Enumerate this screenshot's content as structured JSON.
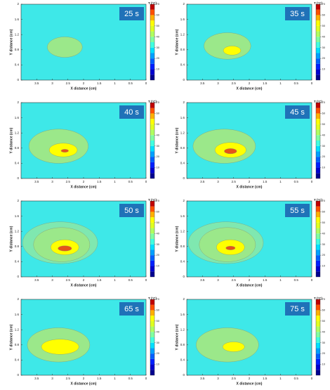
{
  "shared": {
    "xlabel": "X distance (cm)",
    "ylabel": "Y distance (cm)",
    "colorbar_label": "T (°C)",
    "xlim": [
      4,
      0
    ],
    "ylim": [
      0,
      2
    ],
    "xticks": [
      3.5,
      3,
      2.5,
      2,
      1.5,
      1,
      0.5,
      0
    ],
    "yticks": [
      0,
      0.4,
      0.8,
      1.2,
      1.6,
      2
    ],
    "clim": [
      0,
      70
    ],
    "cticks": [
      10,
      20,
      30,
      40,
      50,
      60,
      70
    ],
    "colorbar_colors": [
      "#00008f",
      "#0000d0",
      "#0020ff",
      "#0060ff",
      "#00a0ff",
      "#00e0ff",
      "#40ffe0",
      "#80ffa0",
      "#b0ff60",
      "#e0ff20",
      "#ffff00",
      "#ffb000",
      "#ff5000",
      "#c00000"
    ]
  },
  "chart_data": [
    {
      "type": "contour",
      "title": "25 s",
      "background": "#3ee8e8",
      "regions": [
        {
          "color": "#9be88a",
          "x": 2.6,
          "y": 0.87,
          "rx": 0.56,
          "ry": 0.27
        }
      ]
    },
    {
      "type": "contour",
      "title": "35 s",
      "background": "#3ee8e8",
      "regions": [
        {
          "color": "#9be88a",
          "x": 2.7,
          "y": 0.9,
          "rx": 0.75,
          "ry": 0.35
        },
        {
          "color": "#ffff00",
          "x": 2.55,
          "y": 0.78,
          "rx": 0.28,
          "ry": 0.12
        }
      ]
    },
    {
      "type": "contour",
      "title": "40 s",
      "background": "#3ee8e8",
      "regions": [
        {
          "color": "#9be88a",
          "x": 2.8,
          "y": 0.85,
          "rx": 0.95,
          "ry": 0.45
        },
        {
          "color": "#ffff00",
          "x": 2.65,
          "y": 0.75,
          "rx": 0.45,
          "ry": 0.18
        },
        {
          "color": "#e5541a",
          "x": 2.6,
          "y": 0.73,
          "rx": 0.12,
          "ry": 0.04
        }
      ]
    },
    {
      "type": "contour",
      "title": "45 s",
      "background": "#3ee8e8",
      "regions": [
        {
          "color": "#9be88a",
          "x": 2.8,
          "y": 0.85,
          "rx": 1.0,
          "ry": 0.45
        },
        {
          "color": "#ffff00",
          "x": 2.6,
          "y": 0.75,
          "rx": 0.5,
          "ry": 0.2
        },
        {
          "color": "#e5541a",
          "x": 2.6,
          "y": 0.72,
          "rx": 0.2,
          "ry": 0.07
        }
      ]
    },
    {
      "type": "contour",
      "title": "50 s",
      "background": "#3ee8e8",
      "regions": [
        {
          "color": "#7fe8b0",
          "x": 2.75,
          "y": 0.9,
          "rx": 1.2,
          "ry": 0.55
        },
        {
          "color": "#9be88a",
          "x": 2.7,
          "y": 0.85,
          "rx": 0.9,
          "ry": 0.45
        },
        {
          "color": "#ffff00",
          "x": 2.6,
          "y": 0.78,
          "rx": 0.45,
          "ry": 0.2
        },
        {
          "color": "#e5541a",
          "x": 2.6,
          "y": 0.75,
          "rx": 0.22,
          "ry": 0.07
        }
      ]
    },
    {
      "type": "contour",
      "title": "55 s",
      "background": "#3ee8e8",
      "regions": [
        {
          "color": "#7fe8b0",
          "x": 2.75,
          "y": 0.9,
          "rx": 1.2,
          "ry": 0.55
        },
        {
          "color": "#9be88a",
          "x": 2.7,
          "y": 0.85,
          "rx": 0.9,
          "ry": 0.45
        },
        {
          "color": "#ffff00",
          "x": 2.6,
          "y": 0.78,
          "rx": 0.45,
          "ry": 0.2
        },
        {
          "color": "#e5541a",
          "x": 2.6,
          "y": 0.76,
          "rx": 0.15,
          "ry": 0.05
        }
      ]
    },
    {
      "type": "contour",
      "title": "65 s",
      "background": "#3ee8e8",
      "regions": [
        {
          "color": "#9be88a",
          "x": 2.8,
          "y": 0.8,
          "rx": 1.0,
          "ry": 0.45
        },
        {
          "color": "#ffff00",
          "x": 2.75,
          "y": 0.75,
          "rx": 0.6,
          "ry": 0.2
        }
      ]
    },
    {
      "type": "contour",
      "title": "75 s",
      "background": "#3ee8e8",
      "regions": [
        {
          "color": "#9be88a",
          "x": 2.7,
          "y": 0.8,
          "rx": 1.0,
          "ry": 0.45
        },
        {
          "color": "#ffff00",
          "x": 2.5,
          "y": 0.75,
          "rx": 0.35,
          "ry": 0.13
        }
      ]
    }
  ]
}
